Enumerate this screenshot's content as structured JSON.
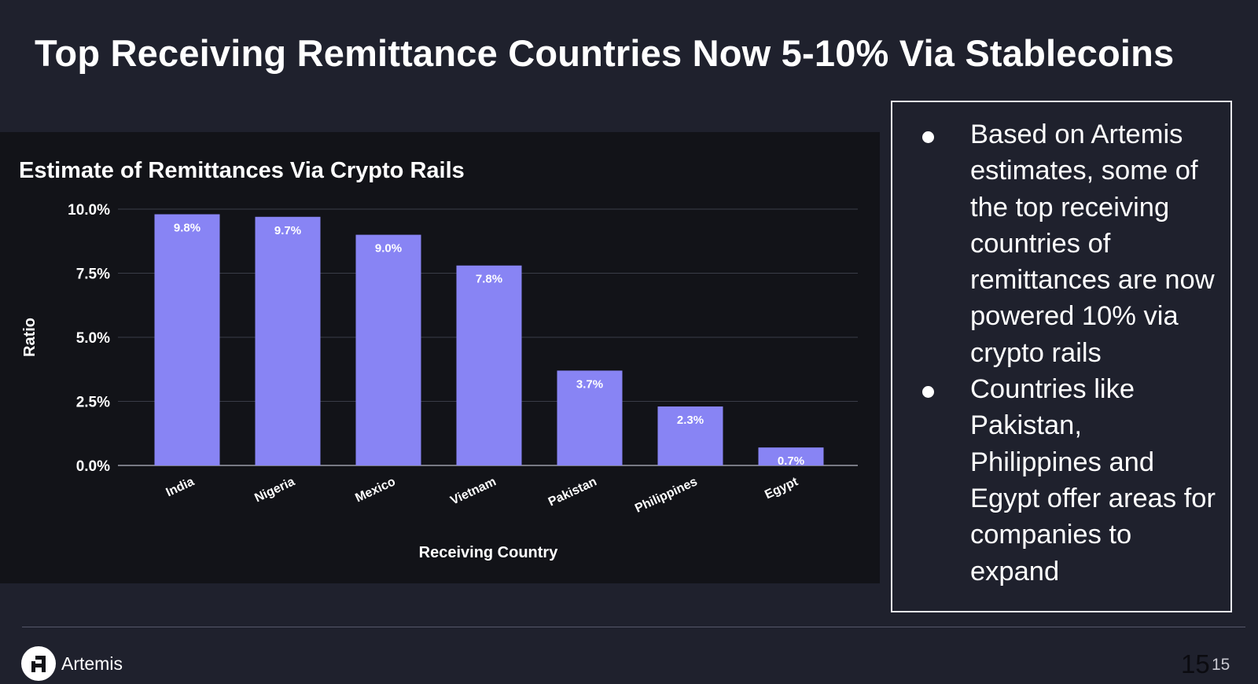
{
  "slide": {
    "title": "Top Receiving Remittance Countries Now 5-10% Via Stablecoins",
    "page_number": "15",
    "page_number_small": "15",
    "brand_name": "Artemis"
  },
  "bullets": [
    "Based on Artemis estimates, some of the top receiving countries of remittances are now powered 10% via crypto rails",
    "Countries like Pakistan, Philippines and Egypt offer areas for companies to expand"
  ],
  "colors": {
    "background": "#1f212d",
    "chart_background": "#121318",
    "bar": "#8884f4",
    "grid": "#3a3c48",
    "text": "#ffffff"
  },
  "chart_data": {
    "type": "bar",
    "title": "Estimate of Remittances Via Crypto Rails",
    "xlabel": "Receiving Country",
    "ylabel": "Ratio",
    "categories": [
      "India",
      "Nigeria",
      "Mexico",
      "Vietnam",
      "Pakistan",
      "Philippines",
      "Egypt"
    ],
    "values": [
      9.8,
      9.7,
      9.0,
      7.8,
      3.7,
      2.3,
      0.7
    ],
    "value_labels": [
      "9.8%",
      "9.7%",
      "9.0%",
      "7.8%",
      "3.7%",
      "2.3%",
      "0.7%"
    ],
    "ylim": [
      0,
      10
    ],
    "yticks": [
      0,
      2.5,
      5,
      7.5,
      10
    ],
    "ytick_labels": [
      "0.0%",
      "2.5%",
      "5.0%",
      "7.5%",
      "10.0%"
    ],
    "grid": true
  }
}
